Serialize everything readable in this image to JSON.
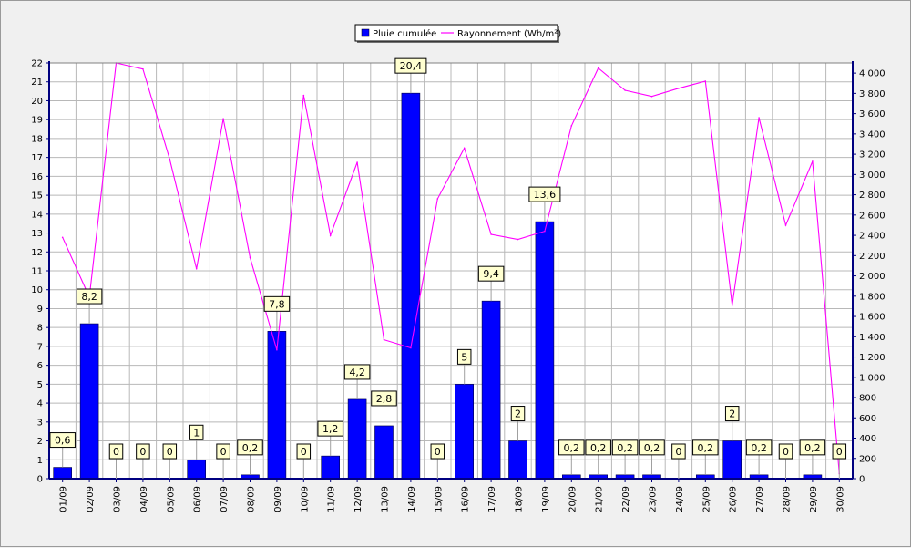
{
  "chart_data": {
    "type": "bar",
    "categories": [
      "01/09",
      "02/09",
      "03/09",
      "04/09",
      "05/09",
      "06/09",
      "07/09",
      "08/09",
      "09/09",
      "10/09",
      "11/09",
      "12/09",
      "13/09",
      "14/09",
      "15/09",
      "16/09",
      "17/09",
      "18/09",
      "19/09",
      "20/09",
      "21/09",
      "22/09",
      "23/09",
      "24/09",
      "25/09",
      "26/09",
      "27/09",
      "28/09",
      "29/09",
      "30/09"
    ],
    "series": [
      {
        "name": "Pluie cumulée",
        "type": "bar",
        "axis": "left",
        "color": "#0000ff",
        "values": [
          0.6,
          8.2,
          0,
          0,
          0,
          1,
          0,
          0.2,
          7.8,
          0,
          1.2,
          4.2,
          2.8,
          20.4,
          0,
          5,
          9.4,
          2,
          13.6,
          0.2,
          0.2,
          0.2,
          0.2,
          0,
          0.2,
          2,
          0.2,
          0,
          0.2,
          0
        ],
        "labels": [
          "0,6",
          "8,2",
          "0",
          "0",
          "0",
          "1",
          "0",
          "0,2",
          "7,8",
          "0",
          "1,2",
          "4,2",
          "2,8",
          "20,4",
          "0",
          "5",
          "9,4",
          "2",
          "13,6",
          "0,2",
          "0,2",
          "0,2",
          "0,2",
          "0",
          "0,2",
          "2",
          "0,2",
          "0",
          "0,2",
          "0"
        ]
      },
      {
        "name": "Rayonnement (Wh/m²)",
        "type": "line",
        "axis": "right",
        "color": "#ff00ff",
        "values": [
          2380,
          1790,
          4100,
          4040,
          3150,
          2070,
          3550,
          2180,
          1270,
          3780,
          2400,
          3120,
          1370,
          1290,
          2760,
          3260,
          2410,
          2360,
          2440,
          3480,
          4050,
          3830,
          3770,
          3850,
          3920,
          1710,
          3560,
          2500,
          3130,
          50
        ]
      }
    ],
    "y_left": {
      "lim": [
        0,
        22
      ],
      "ticks": [
        "0",
        "1",
        "2",
        "3",
        "4",
        "5",
        "6",
        "7",
        "8",
        "9",
        "10",
        "11",
        "12",
        "13",
        "14",
        "15",
        "16",
        "17",
        "18",
        "19",
        "20",
        "21",
        "22"
      ]
    },
    "y_right": {
      "lim": [
        0,
        4100
      ],
      "ticks": [
        "0",
        "200",
        "400",
        "600",
        "800",
        "1 000",
        "1 200",
        "1 400",
        "1 600",
        "1 800",
        "2 000",
        "2 200",
        "2 400",
        "2 600",
        "2 800",
        "3 000",
        "3 200",
        "3 400",
        "3 600",
        "3 800",
        "4 000"
      ]
    },
    "grid": true,
    "legend_position": "top-center",
    "colors": {
      "plot_background": "#ffffff",
      "grid": "#b8b8b8",
      "axis": "#000080",
      "label_box": "#ffffd0"
    }
  }
}
